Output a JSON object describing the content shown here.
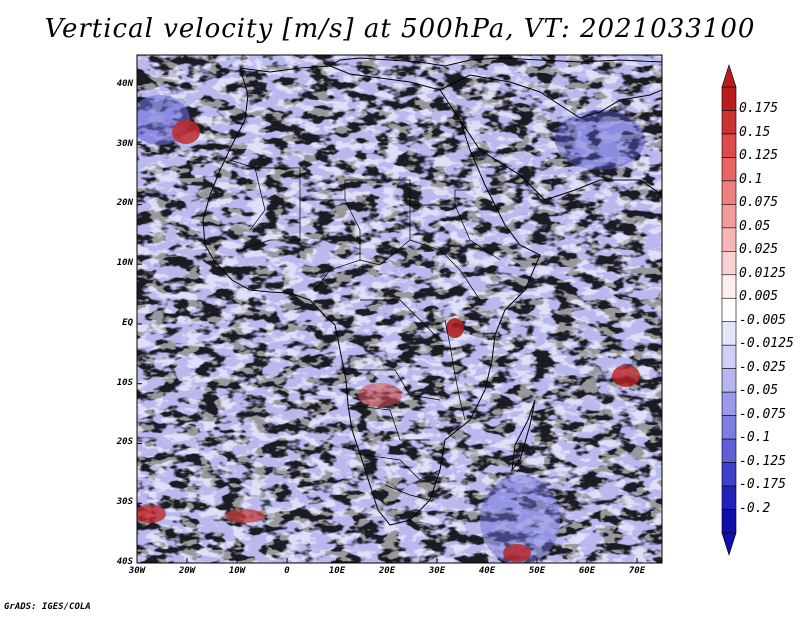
{
  "title": "Vertical velocity [m/s] at 500hPa, VT: 2021033100",
  "credit": "GrADS: IGES/COLA",
  "variable": "Vertical velocity",
  "units": "m/s",
  "level": "500hPa",
  "valid_time": "2021033100",
  "lat_labels": [
    "40N",
    "30N",
    "20N",
    "10N",
    "EQ",
    "10S",
    "20S",
    "30S",
    "40S"
  ],
  "lat_values": [
    40,
    30,
    20,
    10,
    0,
    -10,
    -20,
    -30,
    -40
  ],
  "lon_labels": [
    "30W",
    "20W",
    "10W",
    "0",
    "10E",
    "20E",
    "30E",
    "40E",
    "50E",
    "60E",
    "70E"
  ],
  "lon_values": [
    -30,
    -20,
    -10,
    0,
    10,
    20,
    30,
    40,
    50,
    60,
    70
  ],
  "domain": {
    "lon_min": -30,
    "lon_max": 75,
    "lat_min": -40,
    "lat_max": 45
  },
  "colorbar": {
    "labels": [
      "0.175",
      "0.15",
      "0.125",
      "0.1",
      "0.075",
      "0.05",
      "0.025",
      "0.0125",
      "0.005",
      "-0.005",
      "-0.0125",
      "-0.025",
      "-0.05",
      "-0.075",
      "-0.1",
      "-0.125",
      "-0.175",
      "-0.2"
    ],
    "colors": [
      "#b81c1c",
      "#cc3434",
      "#dd4c4c",
      "#e86464",
      "#ef8080",
      "#f39a9a",
      "#f7b6b6",
      "#fbd2d2",
      "#feeeee",
      "#ffffff",
      "#e6e6fb",
      "#cfcff7",
      "#b6b6f1",
      "#9a9aea",
      "#7d7de2",
      "#5f5fd8",
      "#4040cc",
      "#2222bb",
      "#1010a8"
    ],
    "top_color": "#b81c1c",
    "bottom_color": "#1010a8"
  }
}
